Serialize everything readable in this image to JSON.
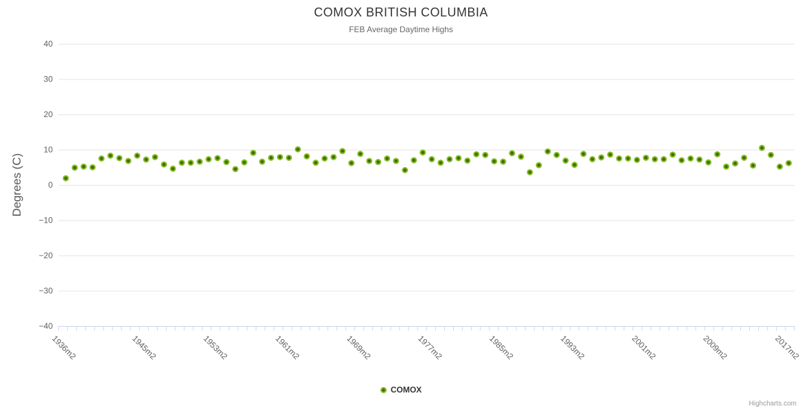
{
  "chart_data": {
    "type": "scatter",
    "title": "COMOX BRITISH COLUMBIA",
    "subtitle": "FEB Average Daytime Highs",
    "legend": {
      "label": "COMOX",
      "marker_outer": "#86bd24",
      "marker_inner": "#3e6a06"
    },
    "credit": "Highcharts.com",
    "colors": {
      "grid": "#e6e6e6",
      "axis": "#ccd6eb",
      "axis_label": "#606060",
      "marker_outer": "#86bd24",
      "marker_inner": "#3e6a06"
    },
    "y_axis": {
      "title": "Degrees (C)",
      "min": -40,
      "max": 40,
      "tick_values": [
        40,
        30,
        20,
        10,
        0,
        -10,
        -20,
        -30,
        -40
      ],
      "tick_labels": [
        "40",
        "30",
        "20",
        "10",
        "0",
        "−10",
        "−20",
        "−30",
        "−40"
      ],
      "grid": true
    },
    "x_axis": {
      "category_suffix": "m2",
      "start_year": 1936,
      "end_year": 2017,
      "tick_labels": [
        {
          "year": 1936,
          "label": "1936m2"
        },
        {
          "year": 1945,
          "label": "1945m2"
        },
        {
          "year": 1953,
          "label": "1953m2"
        },
        {
          "year": 1961,
          "label": "1961m2"
        },
        {
          "year": 1969,
          "label": "1969m2"
        },
        {
          "year": 1977,
          "label": "1977m2"
        },
        {
          "year": 1985,
          "label": "1985m2"
        },
        {
          "year": 1993,
          "label": "1993m2"
        },
        {
          "year": 2001,
          "label": "2001m2"
        },
        {
          "year": 2009,
          "label": "2009m2"
        },
        {
          "year": 2017,
          "label": "2017m2"
        }
      ]
    },
    "series": [
      {
        "name": "COMOX",
        "start_year": 1936,
        "values": [
          1.9,
          4.9,
          5.2,
          5.0,
          7.5,
          8.3,
          7.6,
          6.8,
          8.3,
          7.2,
          7.9,
          5.8,
          4.6,
          6.3,
          6.3,
          6.6,
          7.3,
          7.6,
          6.5,
          4.5,
          6.4,
          9.1,
          6.6,
          7.7,
          7.9,
          7.7,
          10.1,
          8.1,
          6.3,
          7.5,
          7.9,
          9.6,
          6.2,
          8.8,
          6.8,
          6.5,
          7.5,
          6.8,
          4.2,
          7.0,
          9.2,
          7.3,
          6.3,
          7.3,
          7.6,
          6.9,
          8.7,
          8.5,
          6.7,
          6.6,
          9.0,
          8.0,
          3.6,
          5.6,
          9.5,
          8.5,
          6.9,
          5.7,
          8.8,
          7.3,
          7.8,
          8.6,
          7.5,
          7.5,
          7.1,
          7.7,
          7.3,
          7.3,
          8.6,
          7.0,
          7.5,
          7.2,
          6.4,
          8.7,
          5.2,
          6.1,
          7.7,
          5.5,
          10.5,
          8.5,
          5.2,
          6.2
        ]
      }
    ]
  }
}
